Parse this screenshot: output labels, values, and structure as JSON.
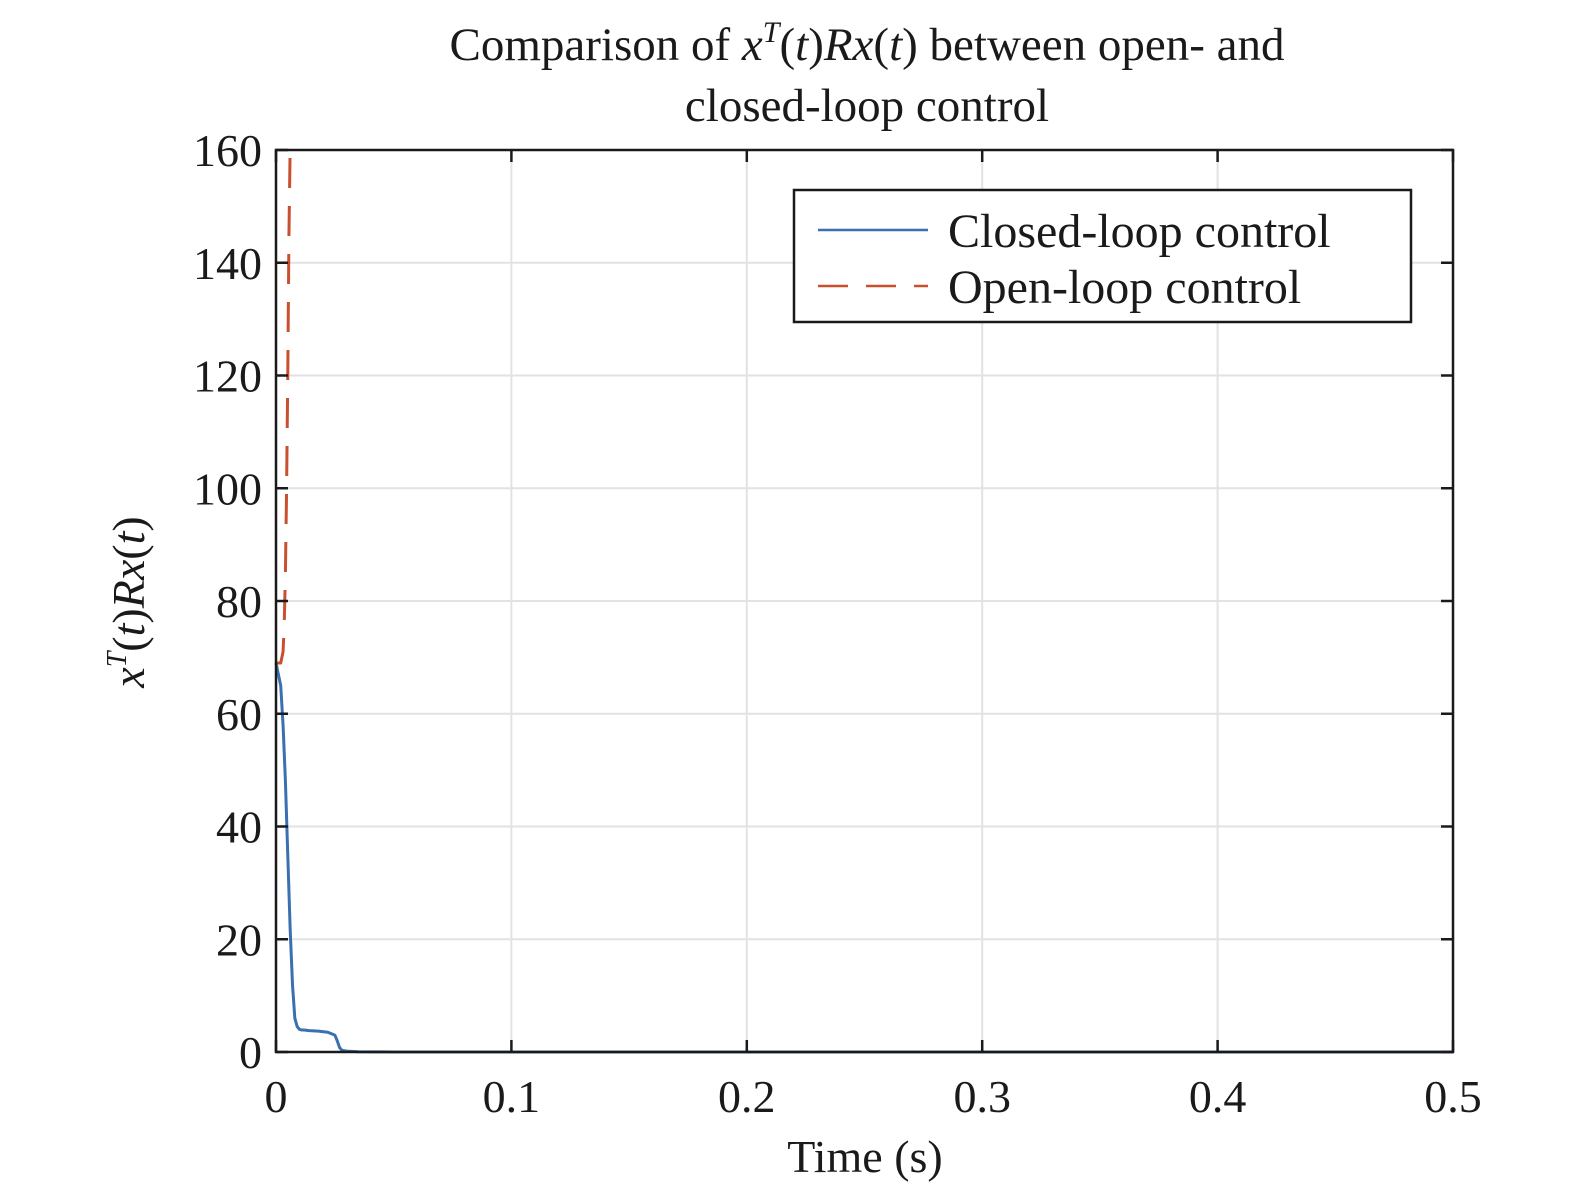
{
  "chart_data": {
    "type": "line",
    "title": {
      "prefix": "Comparison of ",
      "math_x1": "x",
      "math_sup": "T",
      "math_open1": "(",
      "math_t1": "t",
      "math_close1": ")",
      "math_R": "Rx",
      "math_open2": "(",
      "math_t2": "t",
      "math_close2": ")",
      "suffix": " between open- and",
      "line2": "closed-loop control"
    },
    "xlabel": "Time (s)",
    "ylabel": {
      "x": "x",
      "sup": "T",
      "p1": "(",
      "t1": "t",
      "p2": ")",
      "Rx": "Rx",
      "p3": "(",
      "t2": "t",
      "p4": ")"
    },
    "xlim": [
      0,
      0.5
    ],
    "ylim": [
      0,
      160
    ],
    "xticks": [
      0,
      0.1,
      0.2,
      0.3,
      0.4,
      0.5
    ],
    "xtick_labels": [
      "0",
      "0.1",
      "0.2",
      "0.3",
      "0.4",
      "0.5"
    ],
    "yticks": [
      0,
      20,
      40,
      60,
      80,
      100,
      120,
      140,
      160
    ],
    "ytick_labels": [
      "0",
      "20",
      "40",
      "60",
      "80",
      "100",
      "120",
      "140",
      "160"
    ],
    "grid": true,
    "legend_position": "top-right",
    "series": [
      {
        "name": "Closed-loop control",
        "color": "#3a6fb0",
        "dash": "solid",
        "x": [
          0,
          0.0005,
          0.001,
          0.002,
          0.003,
          0.004,
          0.005,
          0.006,
          0.007,
          0.008,
          0.009,
          0.01,
          0.011,
          0.012,
          0.014,
          0.018,
          0.022,
          0.025,
          0.026,
          0.027,
          0.028,
          0.03,
          0.035,
          0.04,
          0.05,
          0.07,
          0.1,
          0.2,
          0.3,
          0.4,
          0.5
        ],
        "y": [
          69,
          68,
          67,
          65,
          58,
          48,
          35,
          22,
          12,
          6,
          4.5,
          4,
          3.9,
          3.9,
          3.8,
          3.7,
          3.5,
          3.0,
          2.0,
          0.8,
          0.3,
          0.15,
          0.05,
          0.02,
          0.005,
          0,
          0,
          0,
          0,
          0,
          0
        ]
      },
      {
        "name": "Open-loop control",
        "color": "#c8502e",
        "dash": "dashed",
        "x": [
          0,
          0.002,
          0.003,
          0.0035,
          0.004,
          0.0045,
          0.005,
          0.0055,
          0.006
        ],
        "y": [
          69,
          69,
          71,
          76,
          85,
          100,
          120,
          145,
          160
        ]
      }
    ]
  }
}
